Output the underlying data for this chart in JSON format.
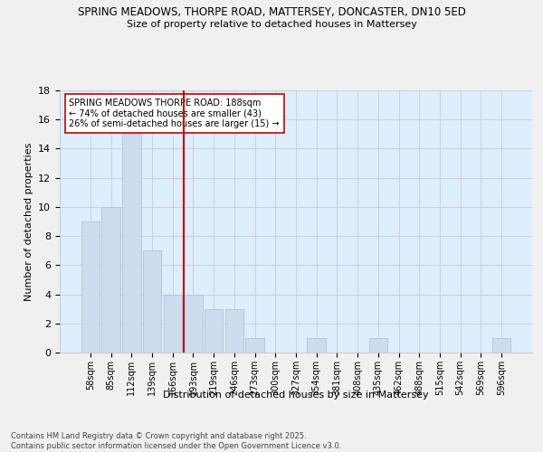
{
  "title_line1": "SPRING MEADOWS, THORPE ROAD, MATTERSEY, DONCASTER, DN10 5ED",
  "title_line2": "Size of property relative to detached houses in Mattersey",
  "xlabel": "Distribution of detached houses by size in Mattersey",
  "ylabel": "Number of detached properties",
  "categories": [
    "58sqm",
    "85sqm",
    "112sqm",
    "139sqm",
    "166sqm",
    "193sqm",
    "219sqm",
    "246sqm",
    "273sqm",
    "300sqm",
    "327sqm",
    "354sqm",
    "381sqm",
    "408sqm",
    "435sqm",
    "462sqm",
    "488sqm",
    "515sqm",
    "542sqm",
    "569sqm",
    "596sqm"
  ],
  "values": [
    9,
    10,
    15,
    7,
    4,
    4,
    3,
    3,
    1,
    0,
    0,
    1,
    0,
    0,
    1,
    0,
    0,
    0,
    0,
    0,
    1
  ],
  "bar_color": "#ccddef",
  "bar_edge_color": "#aabbdd",
  "grid_color": "#cccccc",
  "vline_x_index": 5,
  "vline_color": "#cc0000",
  "annotation_text": "SPRING MEADOWS THORPE ROAD: 188sqm\n← 74% of detached houses are smaller (43)\n26% of semi-detached houses are larger (15) →",
  "annotation_box_color": "#ffffff",
  "annotation_box_edge_color": "#cc0000",
  "ylim": [
    0,
    18
  ],
  "yticks": [
    0,
    2,
    4,
    6,
    8,
    10,
    12,
    14,
    16,
    18
  ],
  "footnote_line1": "Contains HM Land Registry data © Crown copyright and database right 2025.",
  "footnote_line2": "Contains public sector information licensed under the Open Government Licence v3.0.",
  "bg_color": "#ddeeff",
  "fig_bg_color": "#f0f0f0"
}
